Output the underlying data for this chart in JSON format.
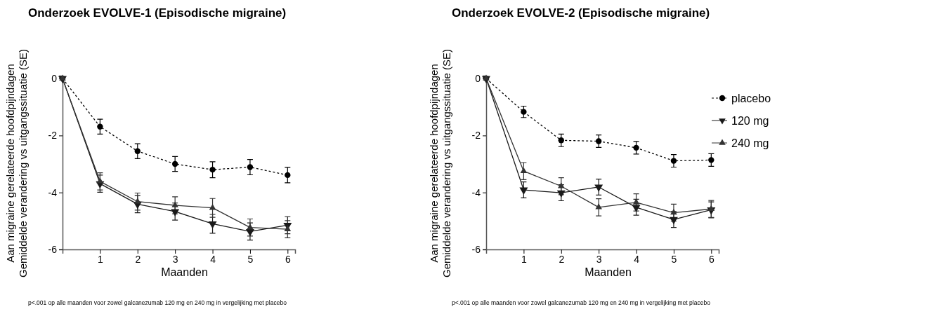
{
  "chart_data": [
    {
      "type": "line",
      "title": "Onderzoek EVOLVE-1 (Episodische migraine)",
      "xlabel": "Maanden",
      "ylabel": "Aan migraine gerelateerde hoofdpijndagen\nGemiddelde verandering vs uitgangssituatie (SE)",
      "x": [
        0,
        1,
        2,
        3,
        4,
        5,
        6
      ],
      "xlim": [
        0,
        6.2
      ],
      "xticks": [
        1,
        2,
        3,
        4,
        5,
        6
      ],
      "ylim": [
        -6,
        0.1
      ],
      "yticks": [
        -6,
        -4,
        -2,
        0
      ],
      "grid": false,
      "legend": false,
      "series": [
        {
          "color": "#000000",
          "marker": "circle",
          "line_style": "dashed",
          "values": [
            0,
            -1.69,
            -2.55,
            -3.0,
            -3.2,
            -3.11,
            -3.39
          ],
          "errors": [
            null,
            0.26,
            0.26,
            0.26,
            0.28,
            0.27,
            0.27
          ]
        },
        {
          "color": "#1a1a1a",
          "marker": "triangle-down",
          "line_style": "solid",
          "values": [
            0,
            -3.69,
            -4.41,
            -4.67,
            -5.1,
            -5.37,
            -5.15
          ],
          "errors": [
            null,
            0.3,
            0.3,
            0.3,
            0.33,
            0.3,
            0.3
          ]
        },
        {
          "color": "#333333",
          "marker": "triangle",
          "line_style": "solid",
          "values": [
            0,
            -3.61,
            -4.32,
            -4.45,
            -4.54,
            -5.23,
            -5.29
          ],
          "errors": [
            null,
            0.3,
            0.3,
            0.3,
            0.33,
            0.3,
            0.3
          ]
        }
      ],
      "annotations": [
        "p<.001 op alle maanden voor zowel galcanezumab 120 mg en 240 mg in vergelijking met placebo"
      ]
    },
    {
      "type": "line",
      "title": "Onderzoek EVOLVE-2 (Episodische migraine)",
      "xlabel": "Maanden",
      "ylabel": "Aan migraine gerelateerde hoofdpijndagen\nGemiddelde verandering vs uitgangssituatie (SE)",
      "x": [
        0,
        1,
        2,
        3,
        4,
        5,
        6
      ],
      "xlim": [
        0,
        6.2
      ],
      "xticks": [
        1,
        2,
        3,
        4,
        5,
        6
      ],
      "ylim": [
        -6,
        0.1
      ],
      "yticks": [
        -6,
        -4,
        -2,
        0
      ],
      "grid": false,
      "legend": "right",
      "series": [
        {
          "name": "placebo",
          "color": "#000000",
          "marker": "circle",
          "line_style": "dashed",
          "values": [
            0,
            -1.17,
            -2.17,
            -2.2,
            -2.43,
            -2.89,
            -2.86
          ],
          "errors": [
            null,
            0.2,
            0.22,
            0.22,
            0.22,
            0.22,
            0.22
          ]
        },
        {
          "name": "120 mg",
          "color": "#1a1a1a",
          "marker": "triangle-down",
          "line_style": "solid",
          "values": [
            0,
            -3.91,
            -4.01,
            -3.81,
            -4.52,
            -4.95,
            -4.61
          ],
          "errors": [
            null,
            0.28,
            0.28,
            0.28,
            0.28,
            0.28,
            0.28
          ]
        },
        {
          "name": "240 mg",
          "color": "#333333",
          "marker": "triangle",
          "line_style": "solid",
          "values": [
            0,
            -3.25,
            -3.78,
            -4.52,
            -4.35,
            -4.71,
            -4.58
          ],
          "errors": [
            null,
            0.3,
            0.3,
            0.3,
            0.3,
            0.3,
            0.3
          ]
        }
      ],
      "annotations": [
        "p<.001 op alle maanden voor zowel galcanezumab 120 mg en 240 mg in vergelijking met placebo"
      ]
    }
  ]
}
